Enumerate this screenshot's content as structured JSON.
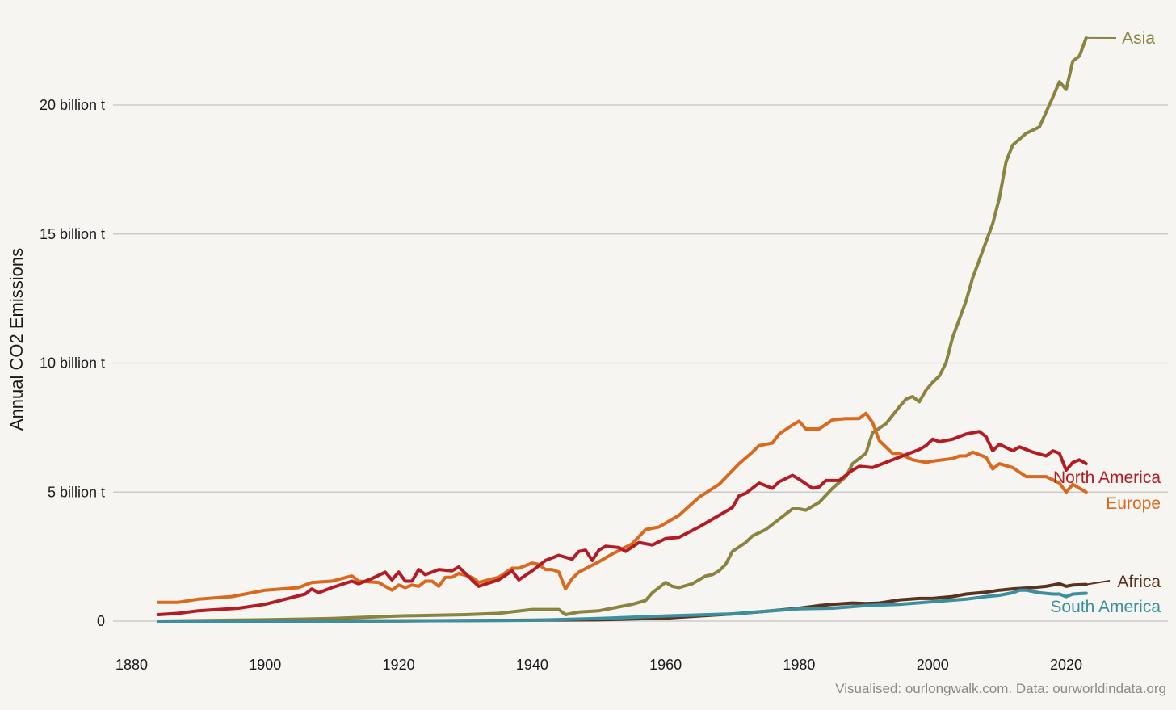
{
  "chart_data": {
    "type": "line",
    "ylabel": "Annual CO2 Emissions",
    "xlim": [
      1875,
      2034
    ],
    "ylim": [
      0,
      23
    ],
    "x_ticks": [
      1880,
      1900,
      1920,
      1940,
      1960,
      1980,
      2000,
      2020
    ],
    "y_ticks": [
      {
        "value": 0,
        "label": "0"
      },
      {
        "value": 5,
        "label": "5 billion t"
      },
      {
        "value": 10,
        "label": "10 billion t"
      },
      {
        "value": 15,
        "label": "15 billion t"
      },
      {
        "value": 20,
        "label": "20 billion t"
      }
    ],
    "grid": true,
    "legend": "direct labels at line ends (right)",
    "unit": "billion t",
    "credit": "Visualised: ourlongwalk.com. Data: ourworldindata.org",
    "series": [
      {
        "name": "Europe",
        "color": "#d9691e",
        "points": [
          [
            1884,
            0.73
          ],
          [
            1887,
            0.73
          ],
          [
            1890,
            0.85
          ],
          [
            1895,
            0.95
          ],
          [
            1900,
            1.2
          ],
          [
            1905,
            1.3
          ],
          [
            1907,
            1.5
          ],
          [
            1910,
            1.55
          ],
          [
            1913,
            1.75
          ],
          [
            1914,
            1.55
          ],
          [
            1917,
            1.5
          ],
          [
            1919,
            1.2
          ],
          [
            1920,
            1.4
          ],
          [
            1921,
            1.3
          ],
          [
            1922,
            1.4
          ],
          [
            1923,
            1.35
          ],
          [
            1924,
            1.55
          ],
          [
            1925,
            1.55
          ],
          [
            1926,
            1.35
          ],
          [
            1927,
            1.7
          ],
          [
            1928,
            1.7
          ],
          [
            1929,
            1.85
          ],
          [
            1931,
            1.7
          ],
          [
            1932,
            1.5
          ],
          [
            1935,
            1.7
          ],
          [
            1937,
            2.05
          ],
          [
            1938,
            2.05
          ],
          [
            1940,
            2.25
          ],
          [
            1941,
            2.2
          ],
          [
            1942,
            2.0
          ],
          [
            1943,
            2.0
          ],
          [
            1944,
            1.9
          ],
          [
            1945,
            1.25
          ],
          [
            1946,
            1.65
          ],
          [
            1947,
            1.9
          ],
          [
            1950,
            2.3
          ],
          [
            1952,
            2.6
          ],
          [
            1955,
            3.0
          ],
          [
            1957,
            3.55
          ],
          [
            1959,
            3.65
          ],
          [
            1962,
            4.1
          ],
          [
            1965,
            4.8
          ],
          [
            1968,
            5.3
          ],
          [
            1971,
            6.1
          ],
          [
            1973,
            6.55
          ],
          [
            1974,
            6.8
          ],
          [
            1976,
            6.9
          ],
          [
            1977,
            7.25
          ],
          [
            1979,
            7.6
          ],
          [
            1980,
            7.75
          ],
          [
            1981,
            7.45
          ],
          [
            1983,
            7.45
          ],
          [
            1985,
            7.8
          ],
          [
            1987,
            7.85
          ],
          [
            1989,
            7.85
          ],
          [
            1990,
            8.05
          ],
          [
            1991,
            7.7
          ],
          [
            1992,
            7.0
          ],
          [
            1994,
            6.5
          ],
          [
            1995,
            6.5
          ],
          [
            1997,
            6.25
          ],
          [
            1999,
            6.15
          ],
          [
            2000,
            6.2
          ],
          [
            2003,
            6.3
          ],
          [
            2004,
            6.4
          ],
          [
            2005,
            6.4
          ],
          [
            2006,
            6.55
          ],
          [
            2008,
            6.35
          ],
          [
            2009,
            5.9
          ],
          [
            2010,
            6.1
          ],
          [
            2012,
            5.95
          ],
          [
            2014,
            5.6
          ],
          [
            2017,
            5.6
          ],
          [
            2019,
            5.35
          ],
          [
            2020,
            5.0
          ],
          [
            2021,
            5.3
          ],
          [
            2022,
            5.15
          ],
          [
            2023,
            5.0
          ]
        ]
      },
      {
        "name": "North America",
        "color": "#b31c24",
        "points": [
          [
            1884,
            0.25
          ],
          [
            1887,
            0.3
          ],
          [
            1890,
            0.4
          ],
          [
            1893,
            0.45
          ],
          [
            1896,
            0.5
          ],
          [
            1900,
            0.65
          ],
          [
            1903,
            0.85
          ],
          [
            1906,
            1.05
          ],
          [
            1907,
            1.25
          ],
          [
            1908,
            1.1
          ],
          [
            1910,
            1.3
          ],
          [
            1913,
            1.55
          ],
          [
            1914,
            1.45
          ],
          [
            1916,
            1.65
          ],
          [
            1918,
            1.9
          ],
          [
            1919,
            1.6
          ],
          [
            1920,
            1.9
          ],
          [
            1921,
            1.55
          ],
          [
            1922,
            1.55
          ],
          [
            1923,
            2.0
          ],
          [
            1924,
            1.8
          ],
          [
            1926,
            2.0
          ],
          [
            1928,
            1.95
          ],
          [
            1929,
            2.1
          ],
          [
            1930,
            1.85
          ],
          [
            1932,
            1.35
          ],
          [
            1935,
            1.6
          ],
          [
            1937,
            1.95
          ],
          [
            1938,
            1.6
          ],
          [
            1940,
            1.95
          ],
          [
            1942,
            2.35
          ],
          [
            1944,
            2.55
          ],
          [
            1946,
            2.4
          ],
          [
            1947,
            2.7
          ],
          [
            1948,
            2.75
          ],
          [
            1949,
            2.35
          ],
          [
            1950,
            2.75
          ],
          [
            1951,
            2.9
          ],
          [
            1953,
            2.85
          ],
          [
            1954,
            2.7
          ],
          [
            1956,
            3.05
          ],
          [
            1958,
            2.95
          ],
          [
            1960,
            3.2
          ],
          [
            1962,
            3.25
          ],
          [
            1965,
            3.65
          ],
          [
            1968,
            4.1
          ],
          [
            1970,
            4.4
          ],
          [
            1971,
            4.85
          ],
          [
            1972,
            4.95
          ],
          [
            1974,
            5.35
          ],
          [
            1976,
            5.15
          ],
          [
            1977,
            5.4
          ],
          [
            1979,
            5.65
          ],
          [
            1980,
            5.5
          ],
          [
            1982,
            5.15
          ],
          [
            1983,
            5.2
          ],
          [
            1984,
            5.45
          ],
          [
            1986,
            5.45
          ],
          [
            1988,
            5.85
          ],
          [
            1989,
            6.0
          ],
          [
            1991,
            5.95
          ],
          [
            1994,
            6.25
          ],
          [
            1996,
            6.45
          ],
          [
            1998,
            6.65
          ],
          [
            1999,
            6.8
          ],
          [
            2000,
            7.05
          ],
          [
            2001,
            6.95
          ],
          [
            2003,
            7.05
          ],
          [
            2005,
            7.25
          ],
          [
            2007,
            7.35
          ],
          [
            2008,
            7.15
          ],
          [
            2009,
            6.6
          ],
          [
            2010,
            6.85
          ],
          [
            2012,
            6.6
          ],
          [
            2013,
            6.75
          ],
          [
            2015,
            6.55
          ],
          [
            2017,
            6.4
          ],
          [
            2018,
            6.6
          ],
          [
            2019,
            6.5
          ],
          [
            2020,
            5.85
          ],
          [
            2021,
            6.15
          ],
          [
            2022,
            6.25
          ],
          [
            2023,
            6.1
          ]
        ]
      },
      {
        "name": "Asia",
        "color": "#8a8440",
        "points": [
          [
            1884,
            0.0
          ],
          [
            1900,
            0.05
          ],
          [
            1910,
            0.1
          ],
          [
            1920,
            0.2
          ],
          [
            1930,
            0.25
          ],
          [
            1935,
            0.3
          ],
          [
            1940,
            0.45
          ],
          [
            1944,
            0.45
          ],
          [
            1945,
            0.25
          ],
          [
            1946,
            0.3
          ],
          [
            1947,
            0.35
          ],
          [
            1950,
            0.4
          ],
          [
            1953,
            0.55
          ],
          [
            1955,
            0.65
          ],
          [
            1957,
            0.8
          ],
          [
            1958,
            1.1
          ],
          [
            1960,
            1.5
          ],
          [
            1961,
            1.35
          ],
          [
            1962,
            1.3
          ],
          [
            1964,
            1.45
          ],
          [
            1966,
            1.75
          ],
          [
            1967,
            1.8
          ],
          [
            1968,
            1.95
          ],
          [
            1969,
            2.2
          ],
          [
            1970,
            2.7
          ],
          [
            1972,
            3.05
          ],
          [
            1973,
            3.3
          ],
          [
            1975,
            3.55
          ],
          [
            1977,
            3.95
          ],
          [
            1979,
            4.35
          ],
          [
            1980,
            4.35
          ],
          [
            1981,
            4.3
          ],
          [
            1983,
            4.6
          ],
          [
            1985,
            5.15
          ],
          [
            1987,
            5.6
          ],
          [
            1988,
            6.1
          ],
          [
            1990,
            6.5
          ],
          [
            1991,
            7.3
          ],
          [
            1993,
            7.65
          ],
          [
            1995,
            8.3
          ],
          [
            1996,
            8.6
          ],
          [
            1997,
            8.7
          ],
          [
            1998,
            8.5
          ],
          [
            1999,
            8.95
          ],
          [
            2000,
            9.25
          ],
          [
            2001,
            9.5
          ],
          [
            2002,
            10.0
          ],
          [
            2003,
            11.0
          ],
          [
            2004,
            11.7
          ],
          [
            2005,
            12.4
          ],
          [
            2006,
            13.3
          ],
          [
            2007,
            14.0
          ],
          [
            2008,
            14.7
          ],
          [
            2009,
            15.4
          ],
          [
            2010,
            16.4
          ],
          [
            2011,
            17.8
          ],
          [
            2012,
            18.45
          ],
          [
            2014,
            18.9
          ],
          [
            2016,
            19.15
          ],
          [
            2018,
            20.3
          ],
          [
            2019,
            20.9
          ],
          [
            2020,
            20.6
          ],
          [
            2021,
            21.7
          ],
          [
            2022,
            21.9
          ],
          [
            2023,
            22.6
          ]
        ]
      },
      {
        "name": "Africa",
        "color": "#5a321d",
        "points": [
          [
            1884,
            0.0
          ],
          [
            1920,
            0.01
          ],
          [
            1950,
            0.05
          ],
          [
            1960,
            0.12
          ],
          [
            1970,
            0.28
          ],
          [
            1975,
            0.38
          ],
          [
            1980,
            0.5
          ],
          [
            1983,
            0.6
          ],
          [
            1985,
            0.65
          ],
          [
            1988,
            0.7
          ],
          [
            1990,
            0.68
          ],
          [
            1992,
            0.7
          ],
          [
            1995,
            0.82
          ],
          [
            1998,
            0.88
          ],
          [
            2000,
            0.88
          ],
          [
            2003,
            0.95
          ],
          [
            2005,
            1.05
          ],
          [
            2008,
            1.12
          ],
          [
            2010,
            1.2
          ],
          [
            2012,
            1.25
          ],
          [
            2015,
            1.3
          ],
          [
            2017,
            1.35
          ],
          [
            2018,
            1.4
          ],
          [
            2019,
            1.45
          ],
          [
            2020,
            1.35
          ],
          [
            2021,
            1.4
          ],
          [
            2023,
            1.42
          ]
        ]
      },
      {
        "name": "South America",
        "color": "#3b8f9e",
        "points": [
          [
            1884,
            0.0
          ],
          [
            1920,
            0.01
          ],
          [
            1940,
            0.03
          ],
          [
            1950,
            0.1
          ],
          [
            1960,
            0.2
          ],
          [
            1970,
            0.28
          ],
          [
            1975,
            0.38
          ],
          [
            1980,
            0.48
          ],
          [
            1985,
            0.5
          ],
          [
            1990,
            0.6
          ],
          [
            1995,
            0.65
          ],
          [
            2000,
            0.75
          ],
          [
            2005,
            0.85
          ],
          [
            2008,
            0.95
          ],
          [
            2010,
            1.0
          ],
          [
            2012,
            1.1
          ],
          [
            2013,
            1.2
          ],
          [
            2014,
            1.2
          ],
          [
            2016,
            1.1
          ],
          [
            2018,
            1.05
          ],
          [
            2019,
            1.05
          ],
          [
            2020,
            0.95
          ],
          [
            2021,
            1.05
          ],
          [
            2023,
            1.08
          ]
        ]
      }
    ]
  }
}
